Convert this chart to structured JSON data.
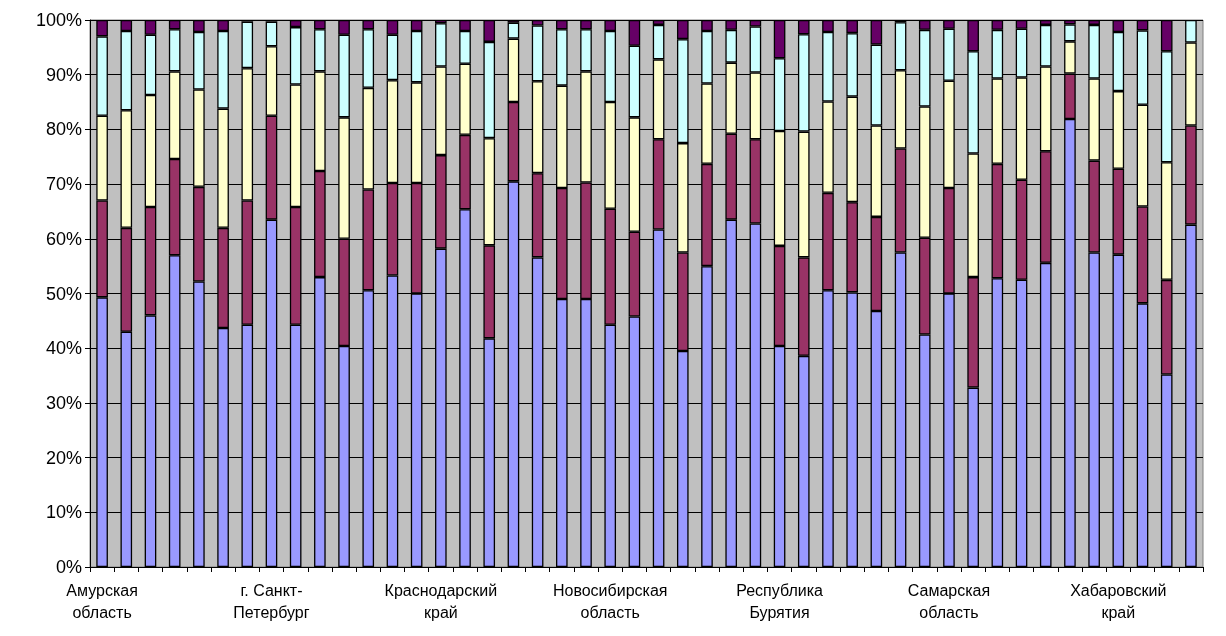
{
  "chart_data": {
    "type": "bar",
    "stacked": true,
    "categories": [
      "Амурская область",
      null,
      null,
      null,
      null,
      null,
      null,
      "г. Санкт-Петербург",
      null,
      null,
      null,
      null,
      null,
      null,
      "Краснодарский край",
      null,
      null,
      null,
      null,
      null,
      null,
      "Новосибирская область",
      null,
      null,
      null,
      null,
      null,
      null,
      "Республика Бурятия",
      null,
      null,
      null,
      null,
      null,
      null,
      "Самарская область",
      null,
      null,
      null,
      null,
      null,
      null,
      "Хабаровский край",
      null,
      null,
      null
    ],
    "series": [
      {
        "color": "#9999ff",
        "values": [
          49.3,
          43,
          46,
          57,
          52.2,
          43.7,
          44.3,
          63.5,
          44.3,
          53,
          40.4,
          50.6,
          53.3,
          50,
          58.2,
          65.4,
          41.8,
          70.5,
          56.6,
          49,
          49,
          44.3,
          45.8,
          61.7,
          39.5,
          55,
          63.5,
          62.8,
          40.4,
          38.6,
          50.6,
          50.2,
          46.8,
          57.5,
          42.5,
          50,
          32.8,
          52.8,
          52.5,
          55.6,
          81.9,
          57.5,
          57.1,
          48.2,
          35.2,
          62.6
        ]
      },
      {
        "color": "#993366",
        "values": [
          17.7,
          19,
          19.8,
          17.6,
          17.3,
          18.3,
          22.7,
          19,
          21.5,
          19.4,
          19.6,
          18.4,
          16.9,
          20.2,
          17.1,
          13.6,
          17,
          14.5,
          15.4,
          20.3,
          21.3,
          21.2,
          15.5,
          16.5,
          18,
          18.7,
          15.7,
          15.4,
          18.3,
          18,
          17.8,
          16.5,
          17.2,
          19,
          17.7,
          19.3,
          20.2,
          20.9,
          18.3,
          20.4,
          8.3,
          16.8,
          15.7,
          17.7,
          17.3,
          18.1
        ]
      },
      {
        "color": "#ffffcc",
        "values": [
          15.5,
          21.5,
          20.5,
          16,
          17.8,
          21.8,
          24.2,
          12.7,
          22.4,
          18.2,
          22.2,
          18.6,
          18.8,
          18.4,
          16.2,
          13,
          19.6,
          11.6,
          16.8,
          18.7,
          20.3,
          19.5,
          20.9,
          14.6,
          20,
          14.7,
          13,
          12.2,
          21,
          23,
          16.7,
          19.3,
          16.7,
          14.3,
          24,
          19.6,
          22.6,
          15.6,
          18.7,
          15.5,
          5.9,
          15,
          14.2,
          18.6,
          21.5,
          15.2
        ]
      },
      {
        "color": "#ccffff",
        "values": [
          14.5,
          14.5,
          11,
          7.7,
          10.5,
          14.2,
          8.5,
          4.5,
          10.5,
          7.7,
          15.1,
          10.7,
          8.3,
          9.4,
          7.9,
          6,
          17.6,
          2.9,
          10.2,
          10.3,
          7.7,
          13,
          13.1,
          6.3,
          19,
          9.6,
          6,
          8.4,
          13.3,
          17.8,
          12.7,
          11.6,
          14.8,
          8.8,
          14,
          9.5,
          18.7,
          8.9,
          8.9,
          7.6,
          3.1,
          9.8,
          10.8,
          13.6,
          20.3,
          4.1
        ]
      },
      {
        "color": "#660066",
        "values": [
          3,
          2,
          2.7,
          1.7,
          2.2,
          2,
          0.3,
          0.3,
          1.3,
          1.7,
          2.7,
          1.7,
          2.7,
          2,
          0.6,
          2,
          4,
          0.5,
          1,
          1.7,
          1.7,
          2,
          4.7,
          0.9,
          3.5,
          2,
          1.8,
          1.2,
          7,
          2.6,
          2.2,
          2.4,
          4.5,
          0.4,
          1.8,
          1.6,
          5.7,
          1.8,
          1.6,
          0.9,
          0.8,
          0.9,
          2.2,
          1.9,
          5.7,
          0
        ]
      }
    ],
    "ylim": [
      0,
      100
    ],
    "yticks": [
      {
        "value": 0,
        "label": "0%"
      },
      {
        "value": 10,
        "label": "10%"
      },
      {
        "value": 20,
        "label": "20%"
      },
      {
        "value": 30,
        "label": "30%"
      },
      {
        "value": 40,
        "label": "40%"
      },
      {
        "value": 50,
        "label": "50%"
      },
      {
        "value": 60,
        "label": "60%"
      },
      {
        "value": 70,
        "label": "70%"
      },
      {
        "value": 80,
        "label": "80%"
      },
      {
        "value": 90,
        "label": "90%"
      },
      {
        "value": 100,
        "label": "100%"
      }
    ],
    "grid": "y"
  }
}
